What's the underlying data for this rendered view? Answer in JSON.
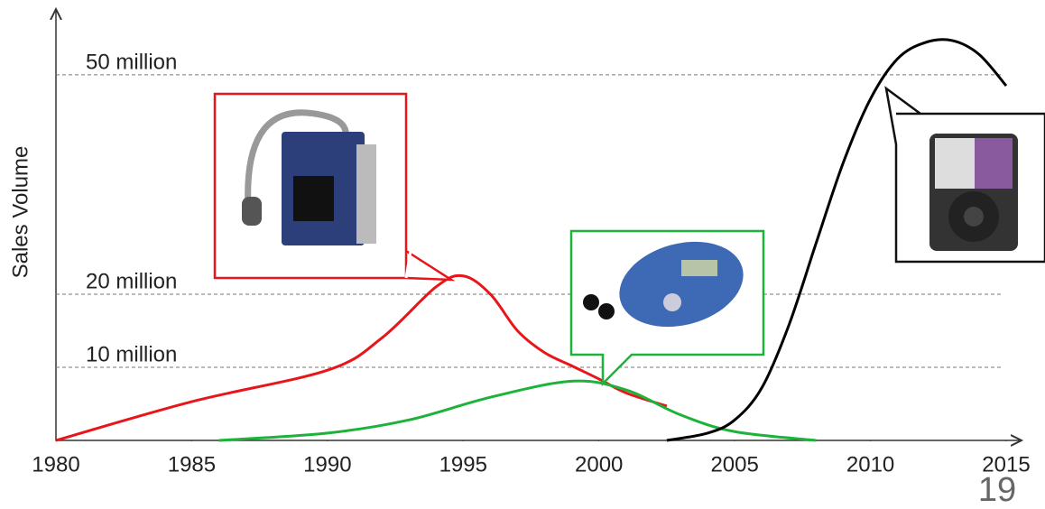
{
  "chart_data": {
    "type": "line",
    "y_label": "Sales Volume",
    "page_number": "19",
    "xlim": [
      1980,
      2015
    ],
    "xticks": [
      1980,
      1985,
      1990,
      1995,
      2000,
      2005,
      2010,
      2015
    ],
    "ylim": [
      0,
      59
    ],
    "yticks": [
      {
        "value": 10,
        "label": "10 million"
      },
      {
        "value": 20,
        "label": "20 million"
      },
      {
        "value": 50,
        "label": "50 million"
      }
    ],
    "grid": true,
    "series": [
      {
        "color": "#e8161b",
        "x": [
          1980,
          1985,
          1990,
          1992,
          1994,
          1995,
          1996,
          1997,
          1998,
          1999,
          2000,
          2001,
          2002.5
        ],
        "values": [
          0,
          5.3,
          9.6,
          14,
          21,
          22.5,
          20,
          15,
          12,
          10.2,
          8.4,
          6.5,
          4.7
        ]
      },
      {
        "color": "#1db33a",
        "x": [
          1986,
          1990,
          1993,
          1996,
          1999,
          2001,
          2003,
          2005,
          2008
        ],
        "values": [
          0,
          1,
          2.8,
          5.9,
          8.1,
          6.9,
          3.5,
          1.2,
          0
        ]
      },
      {
        "color": "#000000",
        "x": [
          2002.5,
          2004,
          2005,
          2006,
          2007,
          2008,
          2009,
          2010,
          2011,
          2012,
          2013,
          2014,
          2015
        ],
        "values": [
          0,
          1,
          2.8,
          7.2,
          15.8,
          27,
          38,
          46.7,
          52.2,
          54.4,
          54.7,
          52.8,
          48.5
        ]
      }
    ]
  }
}
